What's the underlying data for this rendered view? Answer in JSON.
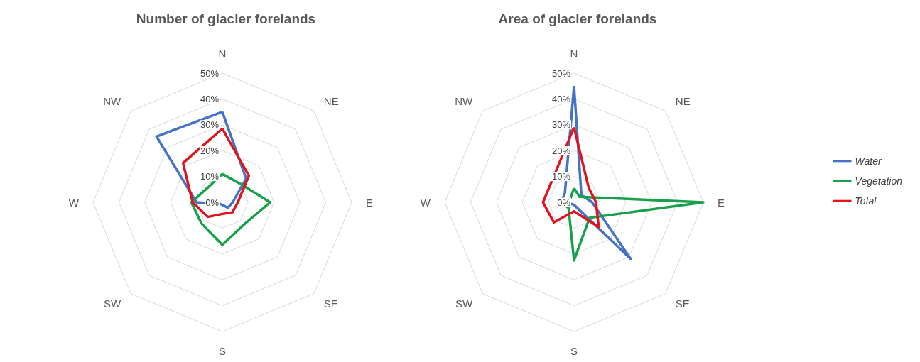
{
  "chart_data": [
    {
      "type": "radar",
      "title": "Number of glacier forelands",
      "categories": [
        "N",
        "NE",
        "E",
        "SE",
        "S",
        "SW",
        "W",
        "NW"
      ],
      "ylim": [
        0,
        50
      ],
      "yticks": [
        {
          "value": 0,
          "label": "0%"
        },
        {
          "value": 10,
          "label": "10%"
        },
        {
          "value": 20,
          "label": "20%"
        },
        {
          "value": 30,
          "label": "30%"
        },
        {
          "value": 40,
          "label": "40%"
        },
        {
          "value": 50,
          "label": "50%"
        }
      ],
      "grid": true,
      "legend": false,
      "marker": "none",
      "line_style": "solid",
      "series": [
        {
          "color": "#4472c4",
          "values": [
            35,
            13,
            4,
            3,
            1,
            1,
            10,
            36
          ]
        },
        {
          "color": "#18a04a",
          "values": [
            11,
            10,
            18.5,
            12,
            16.5,
            11.5,
            12,
            8
          ]
        },
        {
          "color": "#e0141e",
          "values": [
            28.5,
            14.5,
            6,
            5.5,
            4.5,
            8,
            11.5,
            21.5
          ]
        }
      ]
    },
    {
      "type": "radar",
      "title": "Area of glacier forelands",
      "categories": [
        "N",
        "NE",
        "E",
        "SE",
        "S",
        "SW",
        "W",
        "NW"
      ],
      "ylim": [
        0,
        50
      ],
      "yticks": [
        {
          "value": 0,
          "label": "0%"
        },
        {
          "value": 10,
          "label": "10%"
        },
        {
          "value": 20,
          "label": "20%"
        },
        {
          "value": 30,
          "label": "30%"
        },
        {
          "value": 40,
          "label": "40%"
        },
        {
          "value": 50,
          "label": "50%"
        }
      ],
      "grid": true,
      "legend": "right",
      "marker": "none",
      "line_style": "solid",
      "series": [
        {
          "name": "Water",
          "color": "#4472c4",
          "values": [
            45,
            4,
            7,
            31,
            1,
            1,
            5,
            5
          ]
        },
        {
          "name": "Vegetation",
          "color": "#18a04a",
          "values": [
            5.5,
            3,
            50,
            8.5,
            22.5,
            3,
            5,
            2
          ]
        },
        {
          "name": "Total",
          "color": "#e0141e",
          "values": [
            29,
            8,
            8.5,
            13.5,
            3.5,
            11,
            12,
            12
          ]
        }
      ]
    }
  ]
}
